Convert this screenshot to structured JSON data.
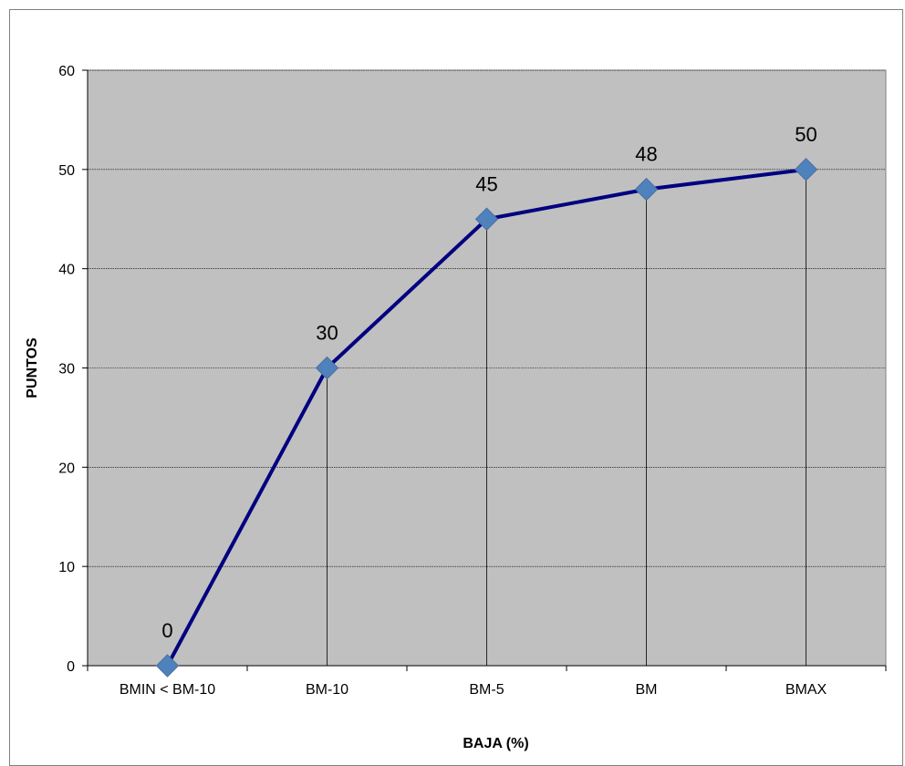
{
  "chart_data": {
    "type": "line",
    "title": "",
    "xlabel": "BAJA (%)",
    "ylabel": "PUNTOS",
    "categories": [
      "BMIN < BM-10",
      "BM-10",
      "BM-5",
      "BM",
      "BMAX"
    ],
    "series": [
      {
        "values": [
          0,
          30,
          45,
          48,
          50
        ]
      }
    ],
    "ylim": [
      0,
      60
    ],
    "yticks": [
      0,
      10,
      20,
      30,
      40,
      50,
      60
    ],
    "grid": "horizontal-major",
    "drop_lines": true,
    "data_labels": true,
    "legend": "none",
    "colors": {
      "plot_background": "#c0c0c0",
      "line": "#000080",
      "marker": "#4f81bd",
      "grid": "#000000"
    }
  }
}
